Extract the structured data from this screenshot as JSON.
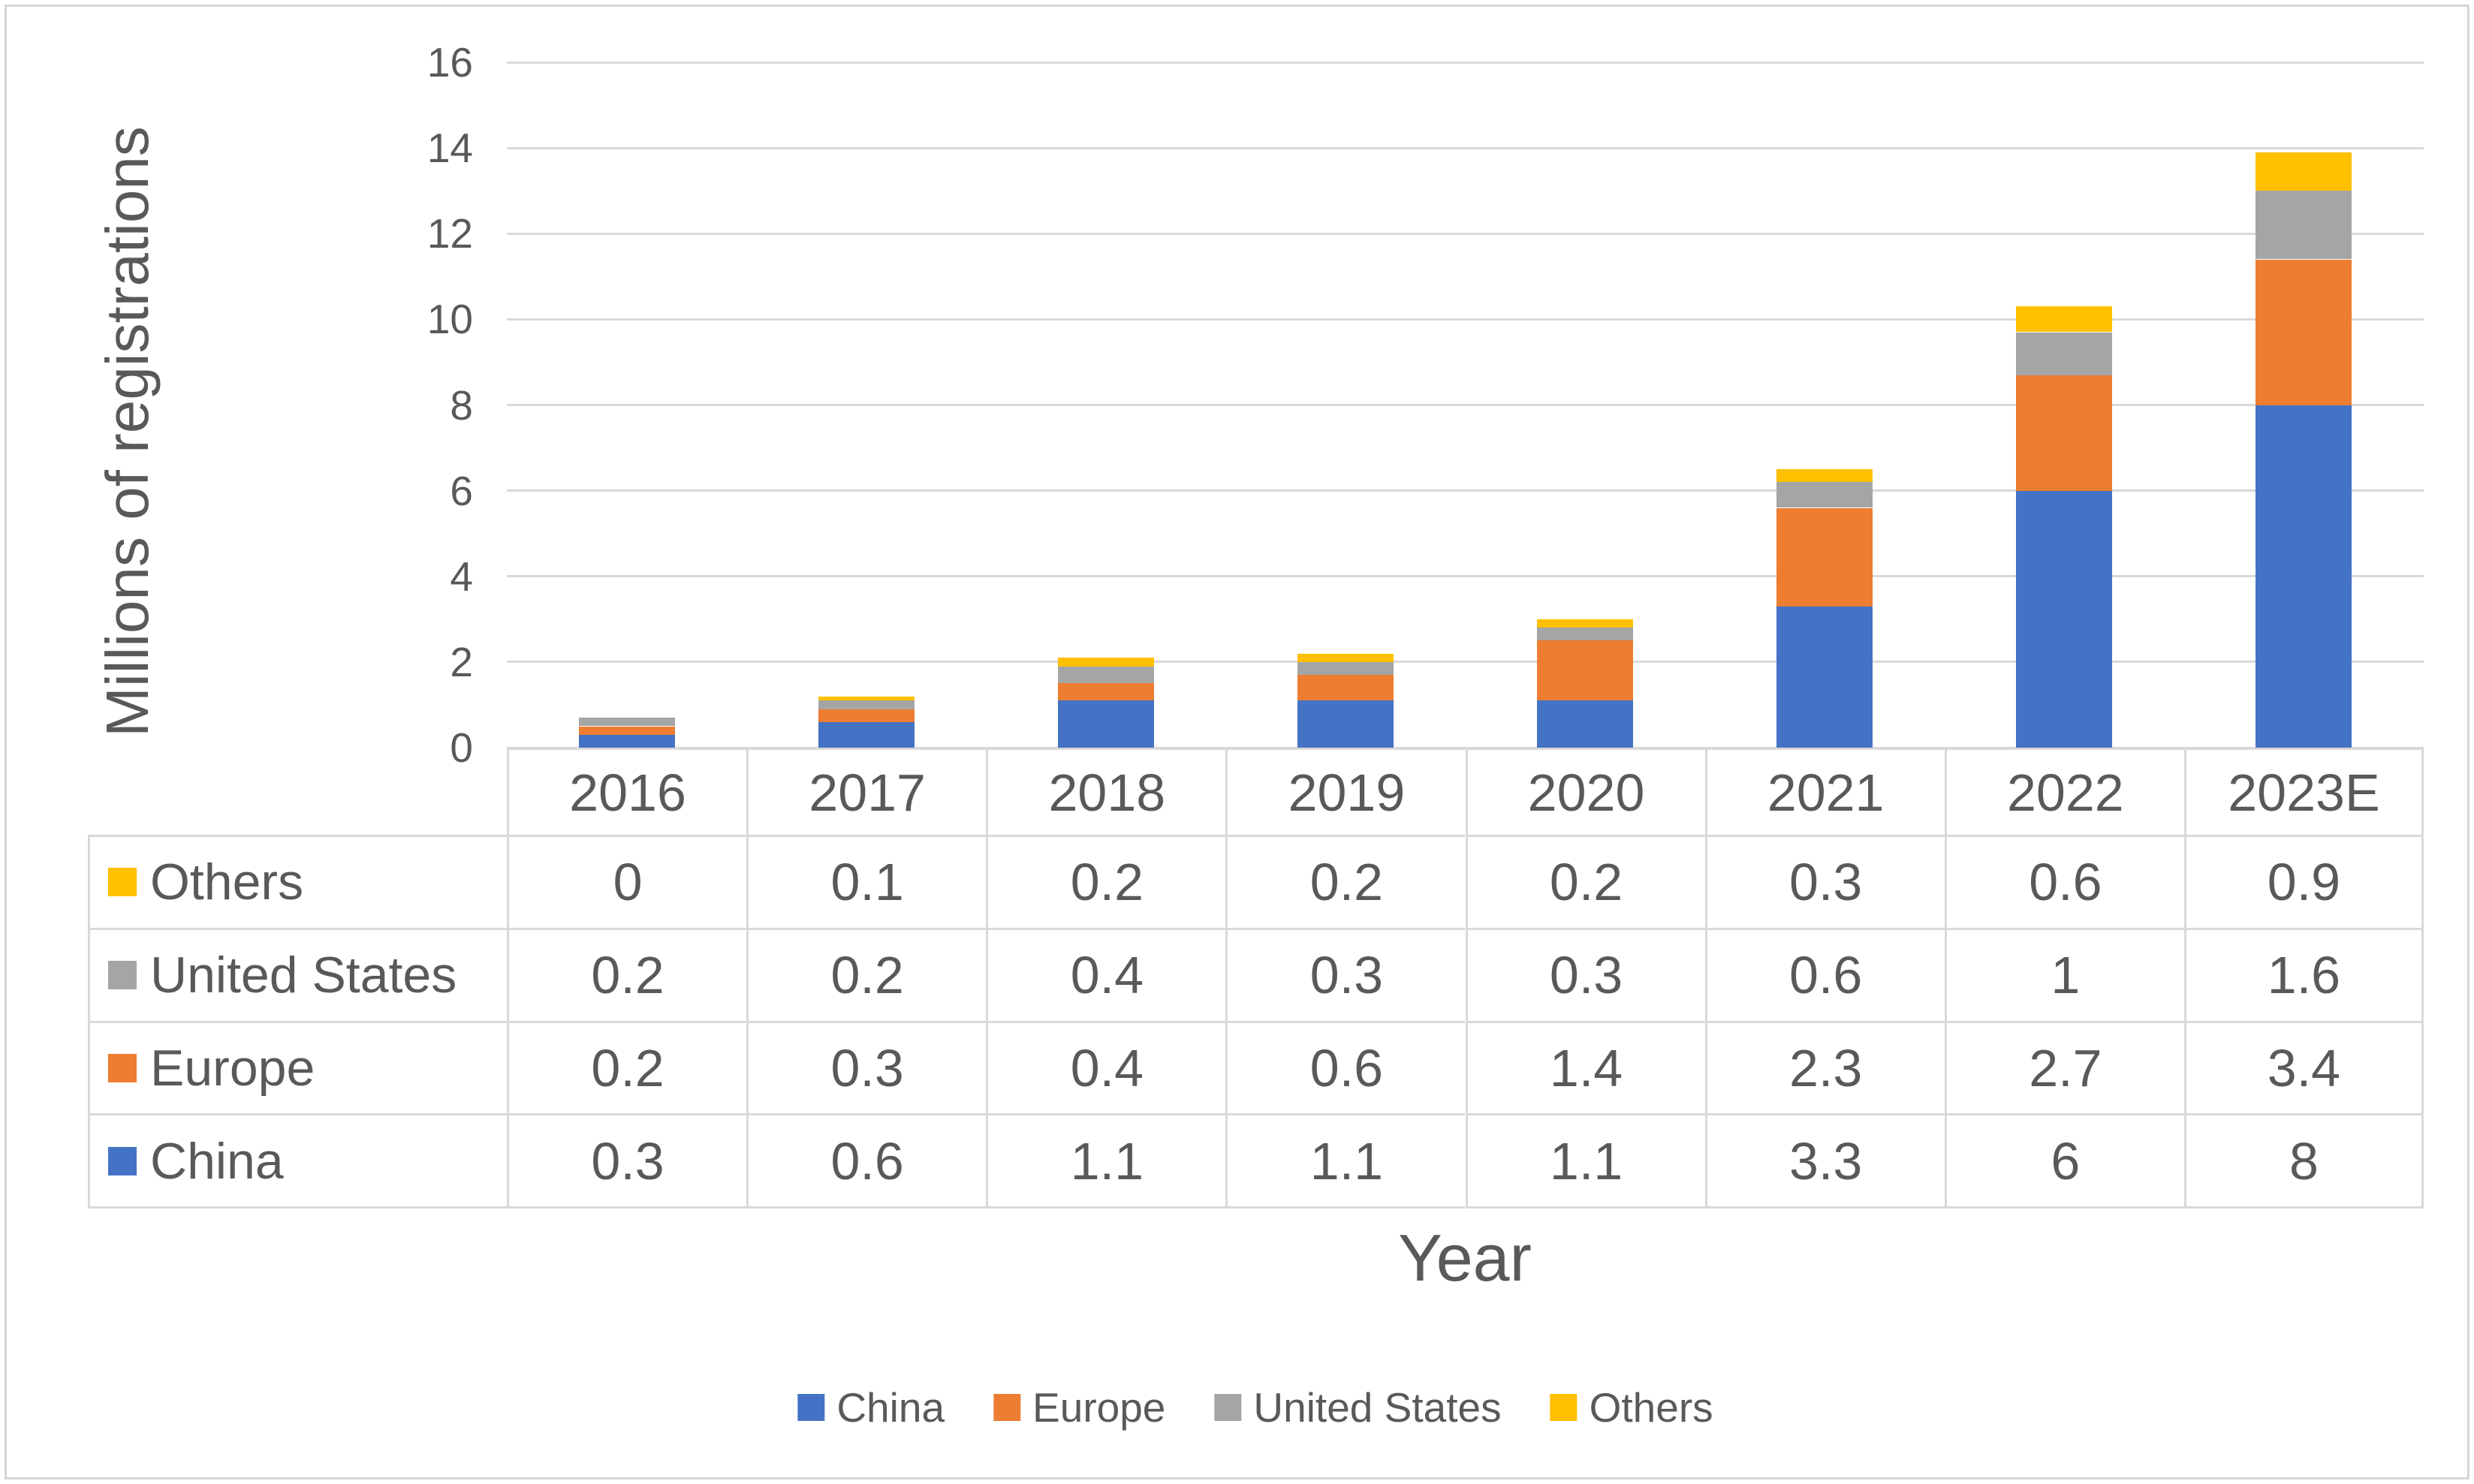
{
  "chart_data": {
    "type": "bar",
    "stacked": true,
    "xlabel": "Year",
    "ylabel": "Millions of registrations",
    "categories": [
      "2016",
      "2017",
      "2018",
      "2019",
      "2020",
      "2021",
      "2022",
      "2023E"
    ],
    "series": [
      {
        "name": "China",
        "color": "#4472C4",
        "values": [
          0.3,
          0.6,
          1.1,
          1.1,
          1.1,
          3.3,
          6,
          8
        ]
      },
      {
        "name": "Europe",
        "color": "#ED7D31",
        "values": [
          0.2,
          0.3,
          0.4,
          0.6,
          1.4,
          2.3,
          2.7,
          3.4
        ]
      },
      {
        "name": "United States",
        "color": "#A5A5A5",
        "values": [
          0.2,
          0.2,
          0.4,
          0.3,
          0.3,
          0.6,
          1,
          1.6
        ]
      },
      {
        "name": "Others",
        "color": "#FFC000",
        "values": [
          0,
          0.1,
          0.2,
          0.2,
          0.2,
          0.3,
          0.6,
          0.9
        ]
      }
    ],
    "ylim": [
      0,
      16
    ],
    "yticks": [
      0,
      2,
      4,
      6,
      8,
      10,
      12,
      14,
      16
    ],
    "grid": true,
    "legend_position": "bottom",
    "legend_order": [
      "China",
      "Europe",
      "United States",
      "Others"
    ],
    "table_row_order": [
      "Others",
      "United States",
      "Europe",
      "China"
    ],
    "colors": {
      "gridline": "#D9D9D9",
      "table_border": "#D9D9D9",
      "text": "#595959"
    }
  }
}
